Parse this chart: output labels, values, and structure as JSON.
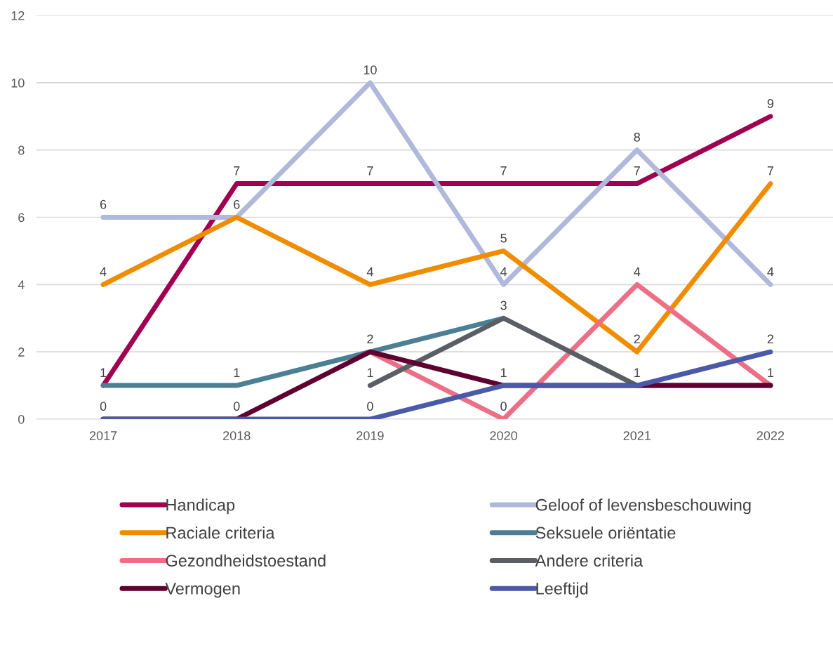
{
  "chart_data": {
    "type": "line",
    "categories": [
      "2017",
      "2018",
      "2019",
      "2020",
      "2021",
      "2022"
    ],
    "series": [
      {
        "name": "Handicap",
        "color": "#a0004f",
        "values": [
          1,
          7,
          7,
          7,
          7,
          9
        ],
        "value_labels": [
          "1",
          "7",
          "7",
          "7",
          "7",
          "9"
        ]
      },
      {
        "name": "Geloof of levensbeschouwing",
        "color": "#b0b8dc",
        "values": [
          6,
          6,
          10,
          4,
          8,
          4
        ],
        "value_labels": [
          "6",
          "6",
          "10",
          "4",
          "8",
          "4"
        ]
      },
      {
        "name": "Raciale criteria",
        "color": "#f08c00",
        "values": [
          4,
          6,
          4,
          5,
          2,
          7
        ],
        "value_labels": [
          "4",
          null,
          "4",
          "5",
          "2",
          "7"
        ]
      },
      {
        "name": "Seksuele oriëntatie",
        "color": "#4a7f94",
        "values": [
          1,
          1,
          2,
          3,
          null,
          null
        ],
        "value_labels": [
          null,
          "1",
          "2",
          "3",
          null,
          null
        ]
      },
      {
        "name": "Gezondheidstoestand",
        "color": "#ec6f86",
        "values": [
          null,
          null,
          2,
          0,
          4,
          1
        ],
        "value_labels": [
          null,
          null,
          null,
          "0",
          "4",
          "1"
        ]
      },
      {
        "name": "Andere criteria",
        "color": "#5a5f66",
        "values": [
          null,
          null,
          1,
          3,
          1,
          1
        ],
        "value_labels": [
          null,
          null,
          "1",
          null,
          "1",
          null
        ]
      },
      {
        "name": "Vermogen",
        "color": "#5e0030",
        "values": [
          0,
          0,
          2,
          1,
          1,
          1
        ],
        "value_labels": [
          "0",
          "0",
          null,
          "1",
          null,
          null
        ]
      },
      {
        "name": "Leeftijd",
        "color": "#4a5aa8",
        "values": [
          0,
          0,
          0,
          1,
          1,
          2
        ],
        "value_labels": [
          null,
          null,
          "0",
          null,
          null,
          "2"
        ]
      }
    ],
    "ylim": [
      0,
      12
    ],
    "yticks": [
      0,
      2,
      4,
      6,
      8,
      10,
      12
    ],
    "grid": "y",
    "legend": "bottom",
    "marker": "none",
    "line_style": "solid"
  }
}
